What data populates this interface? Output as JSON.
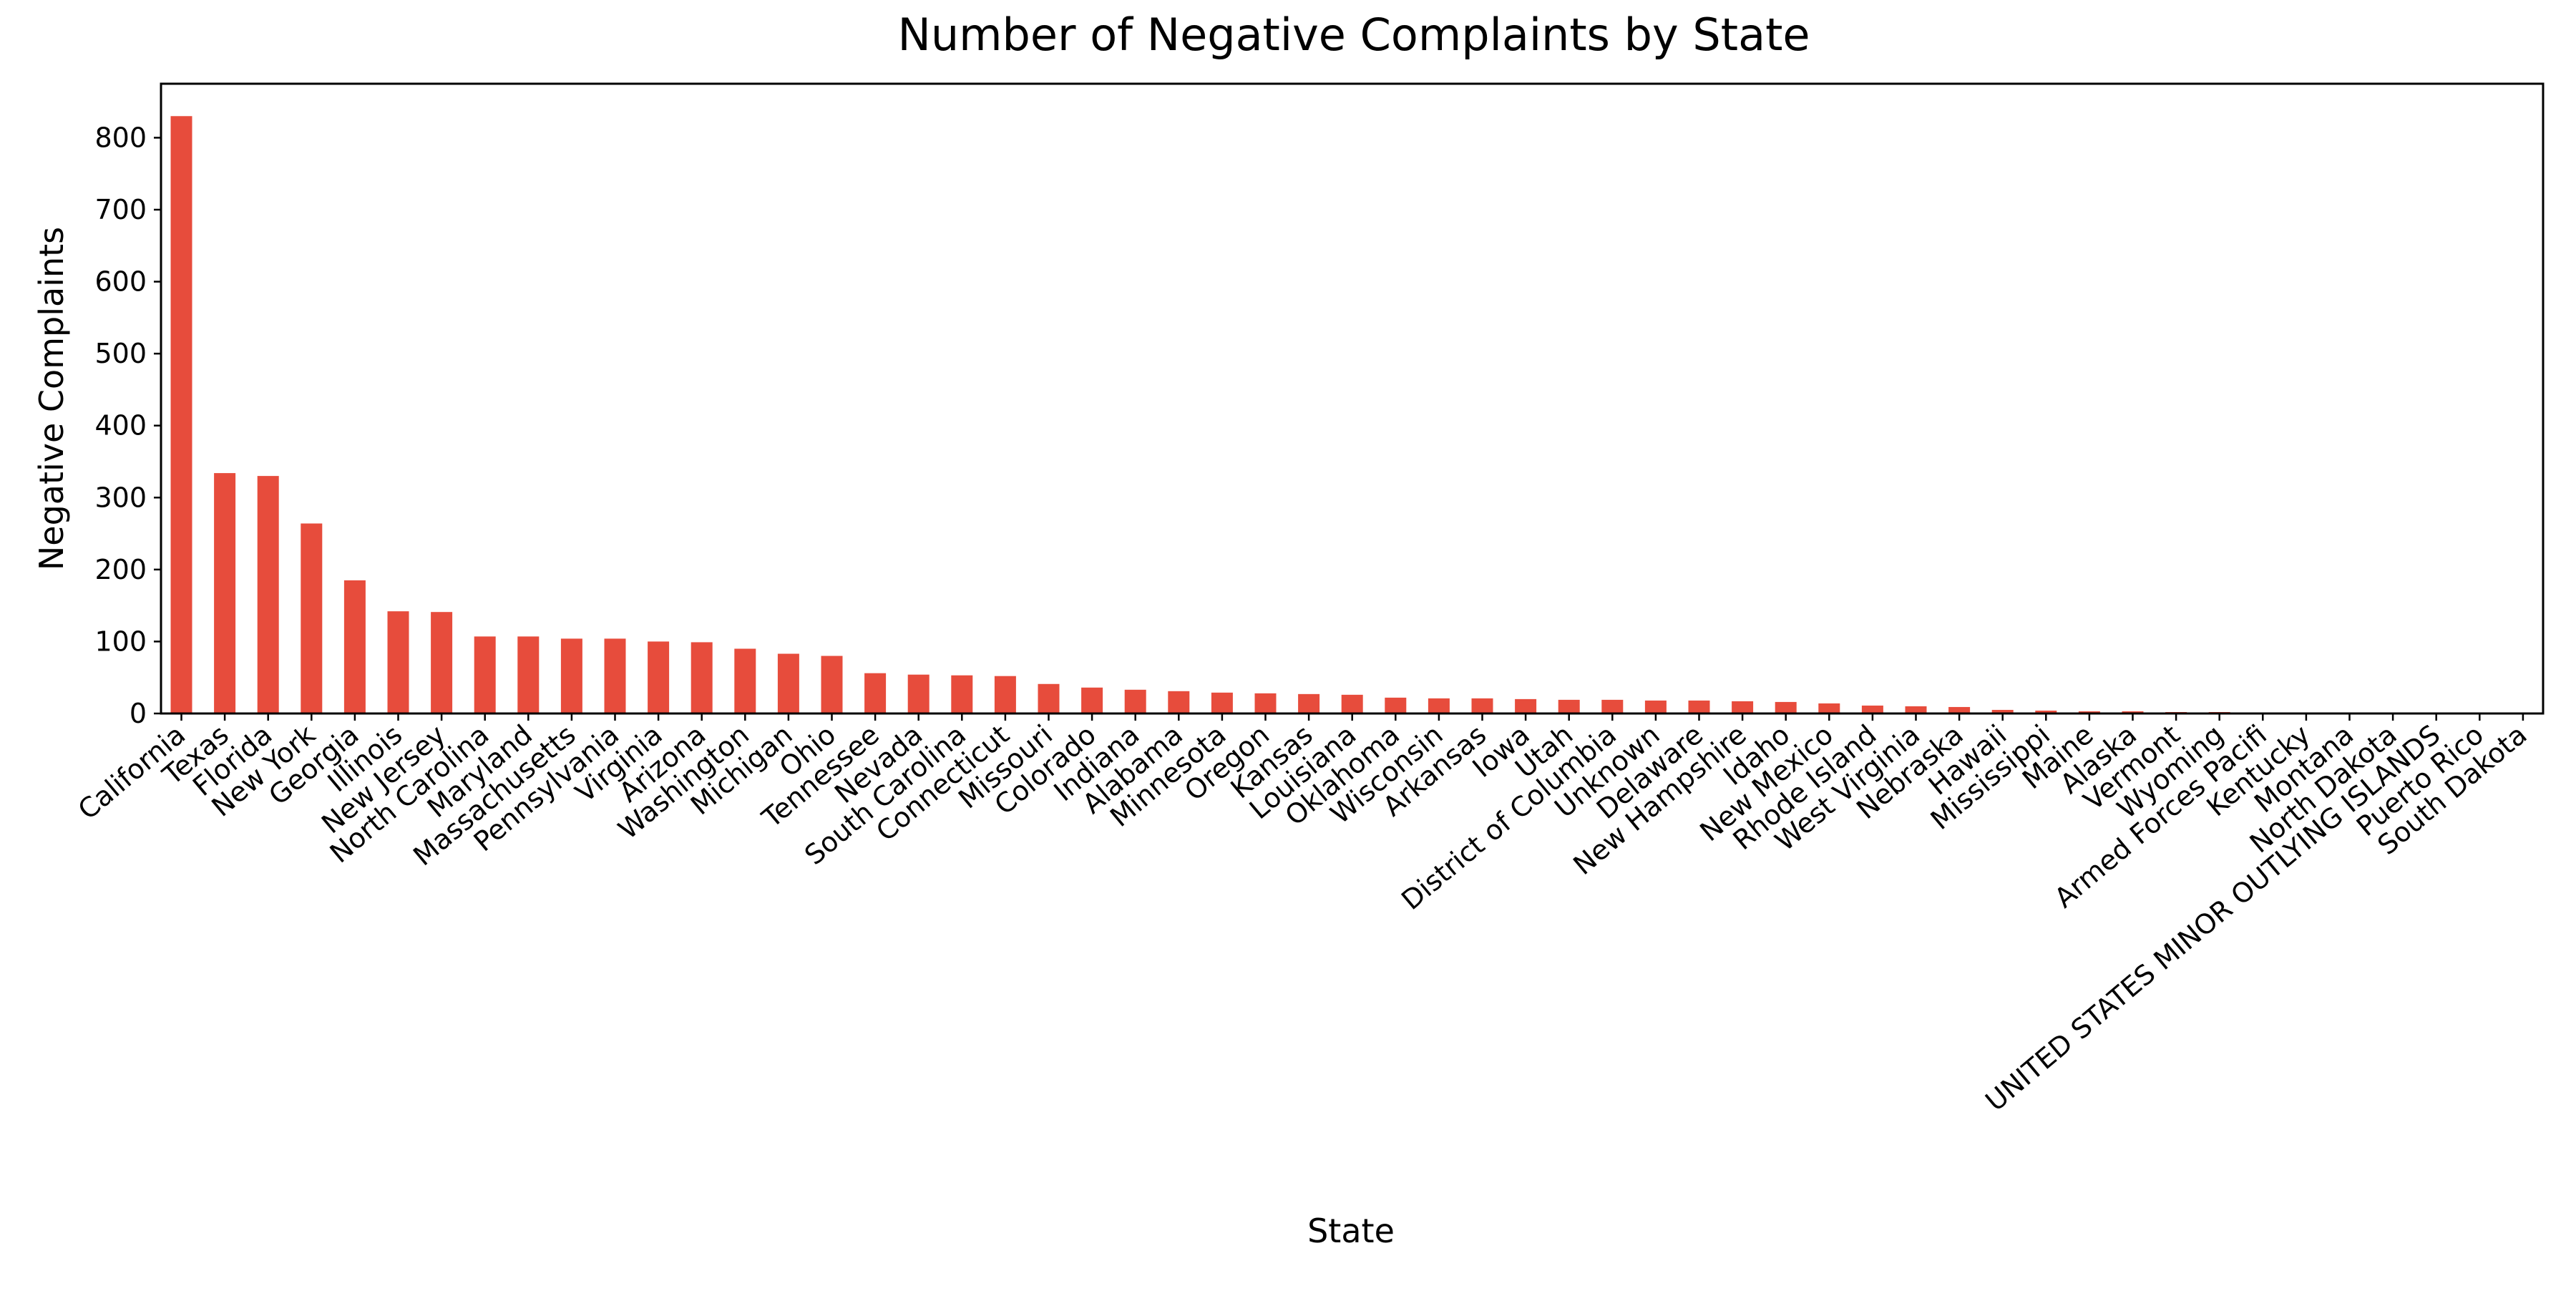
{
  "chart_data": {
    "type": "bar",
    "title": "Number of Negative Complaints by State",
    "xlabel": "State",
    "ylabel": "Negative Complaints",
    "ylim": [
      0,
      875
    ],
    "yticks": [
      0,
      100,
      200,
      300,
      400,
      500,
      600,
      700,
      800
    ],
    "grid": false,
    "legend": "none",
    "bar_color": "#e74c3c",
    "categories": [
      "California",
      "Texas",
      "Florida",
      "New York",
      "Georgia",
      "Illinois",
      "New Jersey",
      "North Carolina",
      "Maryland",
      "Massachusetts",
      "Pennsylvania",
      "Virginia",
      "Arizona",
      "Washington",
      "Michigan",
      "Ohio",
      "Tennessee",
      "Nevada",
      "South Carolina",
      "Connecticut",
      "Missouri",
      "Colorado",
      "Indiana",
      "Alabama",
      "Minnesota",
      "Oregon",
      "Kansas",
      "Louisiana",
      "Oklahoma",
      "Wisconsin",
      "Arkansas",
      "Iowa",
      "Utah",
      "District of Columbia",
      "Unknown",
      "Delaware",
      "New Hampshire",
      "Idaho",
      "New Mexico",
      "Rhode Island",
      "West Virginia",
      "Nebraska",
      "Hawaii",
      "Mississippi",
      "Maine",
      "Alaska",
      "Vermont",
      "Wyoming",
      "Armed Forces Pacifi",
      "Kentucky",
      "Montana",
      "North Dakota",
      "UNITED STATES MINOR OUTLYING ISLANDS",
      "Puerto Rico",
      "South Dakota"
    ],
    "values": [
      830,
      334,
      330,
      264,
      185,
      142,
      141,
      107,
      107,
      104,
      104,
      100,
      99,
      90,
      83,
      80,
      56,
      54,
      53,
      52,
      41,
      36,
      33,
      31,
      29,
      28,
      27,
      26,
      22,
      21,
      21,
      20,
      19,
      19,
      18,
      18,
      17,
      16,
      14,
      11,
      10,
      9,
      5,
      4,
      3,
      3,
      2,
      2,
      1,
      1,
      1,
      1,
      1,
      1,
      1
    ]
  }
}
